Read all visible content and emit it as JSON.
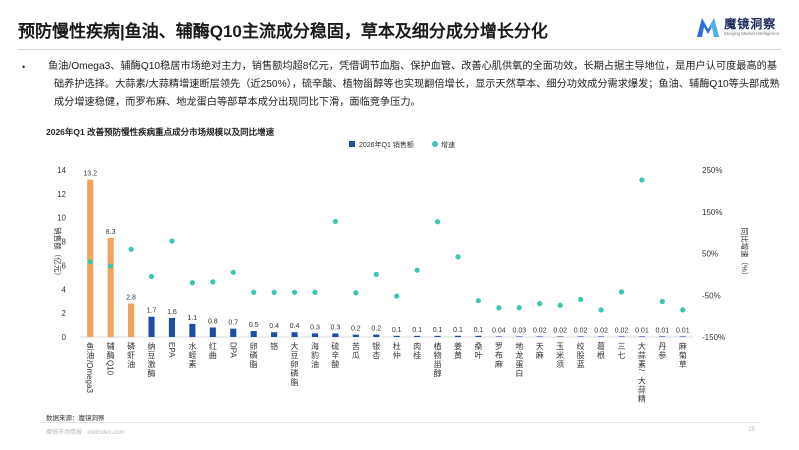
{
  "header": {
    "title": "预防慢性疾病|鱼油、辅酶Q10主流成分稳固，草本及细分成分增长分化",
    "logo_text": "魔镜洞察",
    "logo_subtitle": "Moojing Market Intelligence"
  },
  "summary": {
    "text": "鱼油/Omega3、辅酶Q10稳居市场绝对主力，销售额均超8亿元，凭借调节血脂、保护血管、改善心肌供氧的全面功效，长期占据主导地位，是用户认可度最高的基础养护选择。大蒜素/大蒜精增速断层领先（近250%），硫辛酸、植物甾醇等也实现翻倍增长，显示天然草本、细分功效成分需求爆发；鱼油、辅酶Q10等头部成熟成分增速稳健，而罗布麻、地龙蛋白等部草本成分出现同比下滑，面临竞争压力。"
  },
  "source": "数据来源：魔镜洞察",
  "footer": {
    "left": "魔镜市场情报 · mktindex.com",
    "page": "25"
  },
  "colors": {
    "orange": "#f5a25d",
    "blue": "#1f4ea8",
    "teal": "#3cc5b0"
  },
  "chart_data": {
    "type": "bar",
    "title": "2026年Q1 改善预防慢性疾病重点成分市场规模以及同比增速",
    "legend": [
      "2026年Q1 销售额",
      "增速"
    ],
    "legend_position": "top",
    "ylabel": "销售额（亿元）",
    "y2label": "同比增速（%）",
    "ylim": [
      0,
      14
    ],
    "yticks": [
      0,
      2,
      4,
      6,
      8,
      10,
      12,
      14
    ],
    "y2lim": [
      -150,
      250
    ],
    "y2ticks": [
      "-150%",
      "-50%",
      "50%",
      "150%",
      "250%"
    ],
    "categories": [
      "鱼油/Omega3",
      "辅酶Q10",
      "磷虾油",
      "纳豆激酶",
      "EPA",
      "水蛭素",
      "红曲",
      "DPA",
      "卵磷脂",
      "铬",
      "大豆卵磷脂",
      "海豹油",
      "硫辛酸",
      "苦瓜",
      "银杏",
      "杜仲",
      "肉桂",
      "植物甾醇",
      "姜黄",
      "桑叶",
      "罗布麻",
      "地龙蛋白",
      "天麻",
      "玉米须",
      "绞股蓝",
      "葛根",
      "三七",
      "大蒜素/大蒜精",
      "丹参",
      "麻菊草"
    ],
    "values": [
      13.2,
      8.3,
      2.8,
      1.7,
      1.6,
      1.1,
      0.8,
      0.7,
      0.5,
      0.4,
      0.4,
      0.3,
      0.3,
      0.2,
      0.2,
      0.1,
      0.1,
      0.1,
      0.1,
      0.1,
      0.04,
      0.03,
      0.02,
      0.02,
      0.02,
      0.02,
      0.02,
      0.01,
      0.01,
      0.01
    ],
    "labels": [
      "13.2",
      "8.3",
      "2.8",
      "1.7",
      "1.6",
      "1.1",
      "0.8",
      "0.7",
      "0.5",
      "0.4",
      "0.4",
      "0.3",
      "0.3",
      "0.2",
      "0.2",
      "0.1",
      "0.1",
      "0.1",
      "0.1",
      "0.1",
      "0.04",
      "0.03",
      "0.02",
      "0.02",
      "0.02",
      "0.02",
      "0.02",
      "0.01",
      "0.01",
      "0.01"
    ],
    "bar_colors": [
      "orange",
      "orange",
      "orange",
      "blue",
      "blue",
      "blue",
      "blue",
      "blue",
      "blue",
      "blue",
      "blue",
      "blue",
      "blue",
      "blue",
      "blue",
      "blue",
      "blue",
      "blue",
      "blue",
      "blue",
      "blue",
      "blue",
      "blue",
      "blue",
      "blue",
      "blue",
      "blue",
      "blue",
      "blue",
      "blue"
    ],
    "growth": [
      30,
      20,
      60,
      -5,
      80,
      -20,
      -18,
      5,
      -43,
      -43,
      -43,
      -43,
      127,
      -44,
      0,
      -52,
      10,
      126,
      42,
      -63,
      -80,
      -80,
      -70,
      -74,
      -60,
      -85,
      -42,
      226,
      -65,
      -85
    ]
  }
}
